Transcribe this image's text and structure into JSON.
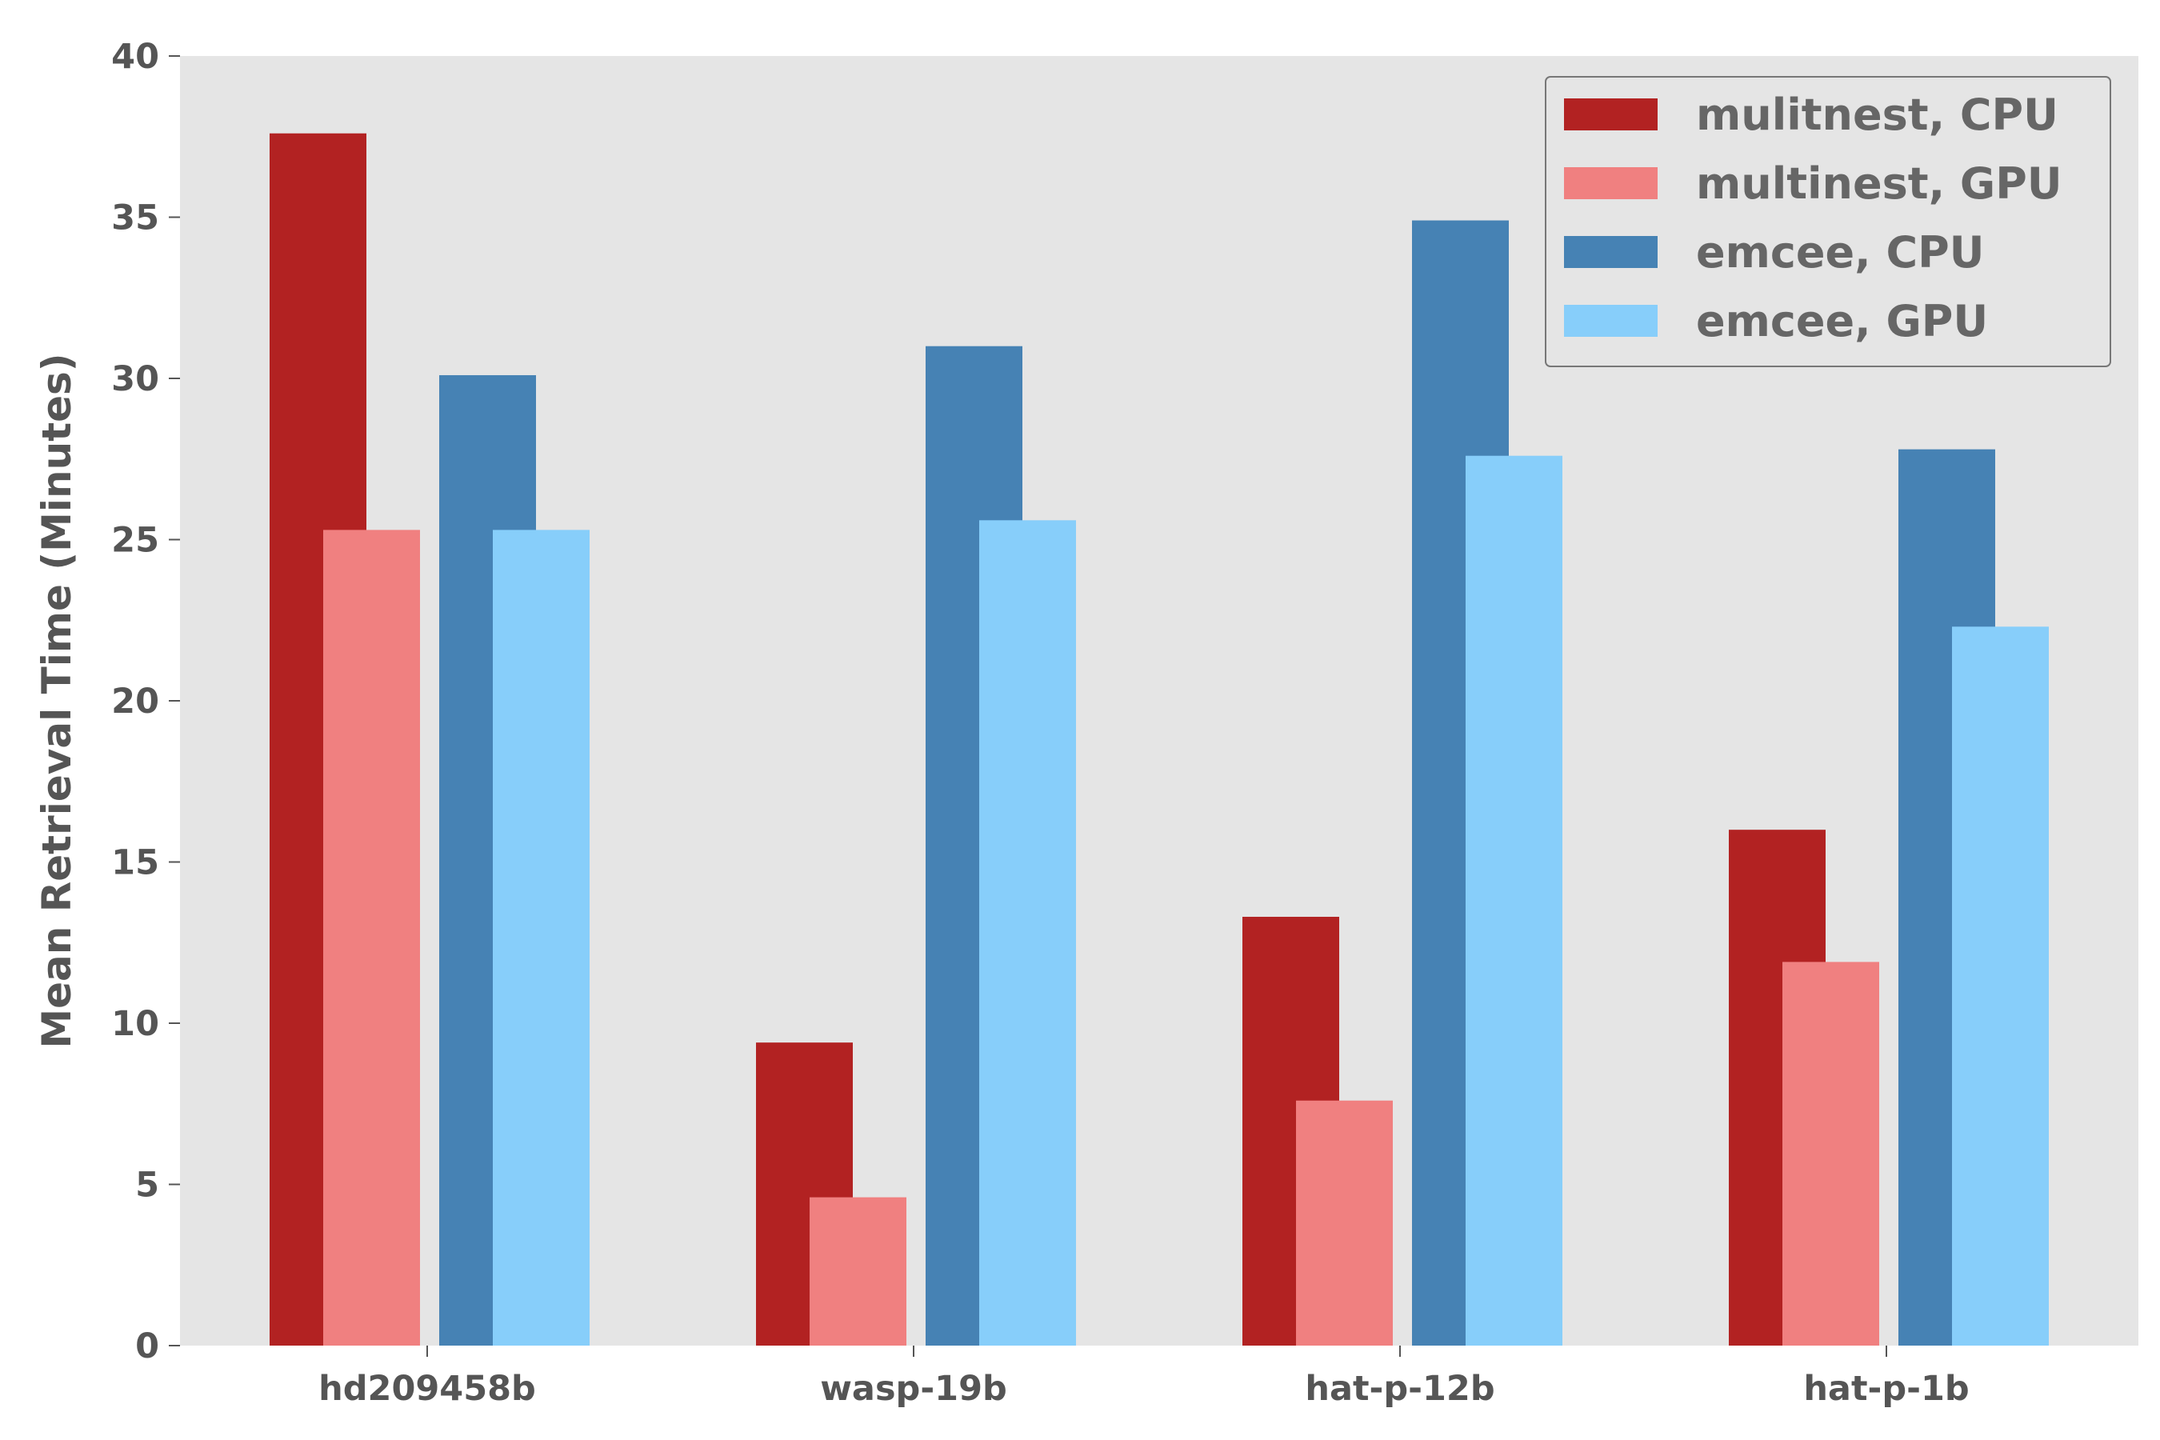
{
  "chart_data": {
    "type": "bar",
    "ylabel": "Mean Retrieval Time (Minutes)",
    "xlabel": "",
    "ylim": [
      0,
      40
    ],
    "yticks": [
      0,
      5,
      10,
      15,
      20,
      25,
      30,
      35,
      40
    ],
    "grid": false,
    "legend_position": "top-right",
    "categories": [
      "hd209458b",
      "wasp-19b",
      "hat-p-12b",
      "hat-p-1b"
    ],
    "series": [
      {
        "name": "mulitnest, CPU",
        "color": "#b22222",
        "values": [
          37.6,
          9.4,
          13.3,
          16.0
        ]
      },
      {
        "name": "multinest, GPU",
        "color": "#f08080",
        "values": [
          25.3,
          4.6,
          7.6,
          11.9
        ]
      },
      {
        "name": "emcee, CPU",
        "color": "#4682b4",
        "values": [
          30.1,
          31.0,
          34.9,
          27.8
        ]
      },
      {
        "name": "emcee, GPU",
        "color": "#87cefa",
        "values": [
          25.3,
          25.6,
          27.6,
          22.3
        ]
      }
    ]
  }
}
